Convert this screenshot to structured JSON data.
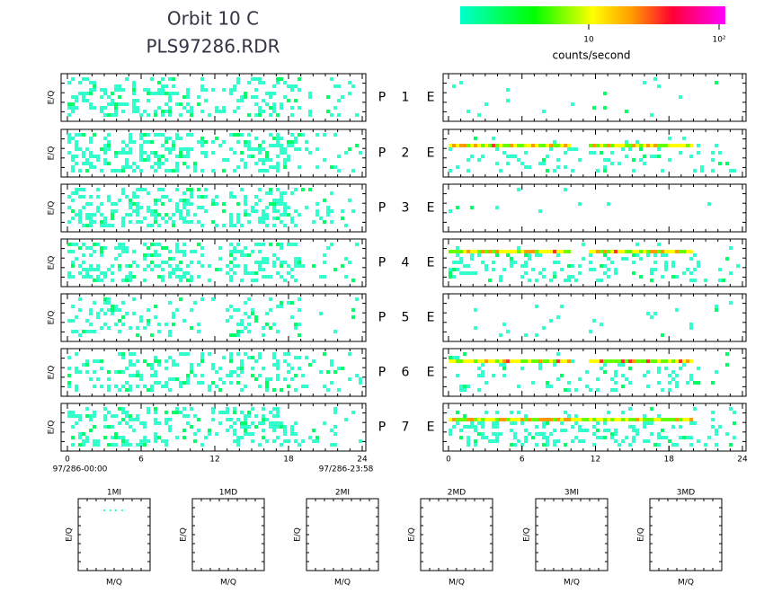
{
  "header": {
    "title": "Orbit 10 C",
    "subtitle": "PLS97286.RDR"
  },
  "colorbar": {
    "tick_labels": [
      "10",
      "10²"
    ],
    "label": "counts/second"
  },
  "panels": {
    "y_label": "E/Q",
    "rows": [
      {
        "left": "P",
        "number": "1",
        "right": "E"
      },
      {
        "left": "P",
        "number": "2",
        "right": "E"
      },
      {
        "left": "P",
        "number": "3",
        "right": "E"
      },
      {
        "left": "P",
        "number": "4",
        "right": "E"
      },
      {
        "left": "P",
        "number": "5",
        "right": "E"
      },
      {
        "left": "P",
        "number": "6",
        "right": "E"
      },
      {
        "left": "P",
        "number": "7",
        "right": "E"
      }
    ]
  },
  "time_axis": {
    "ticks": [
      0,
      6,
      12,
      18,
      24
    ],
    "start": "97/286-00:00",
    "end": "97/286-23:58"
  },
  "mass_panels": {
    "labels": [
      "1MI",
      "1MD",
      "2MI",
      "2MD",
      "3MI",
      "3MD"
    ],
    "x_label": "M/Q",
    "y_label": "E/Q"
  }
}
